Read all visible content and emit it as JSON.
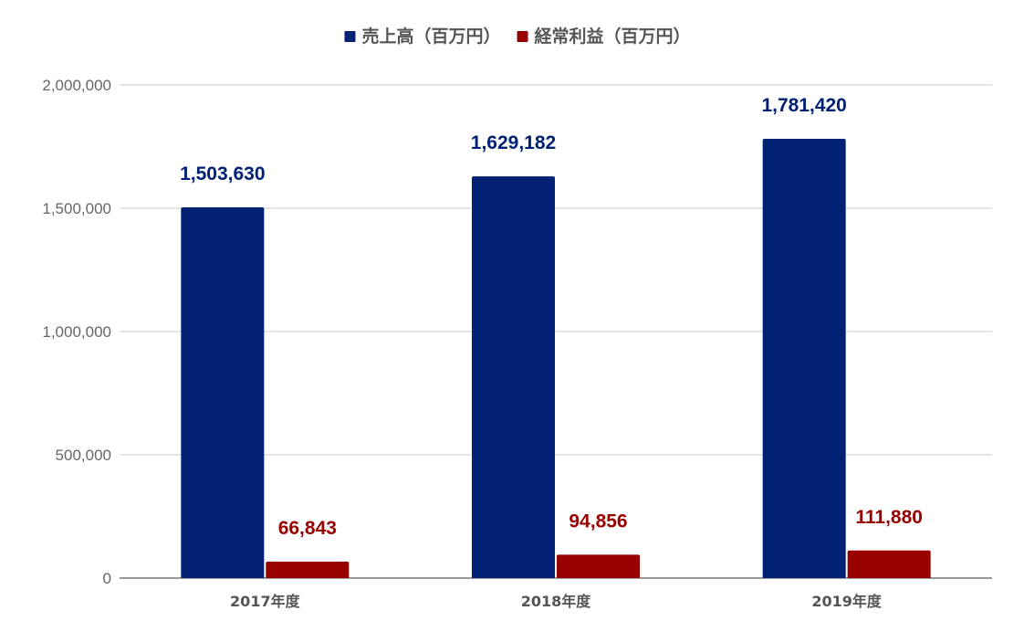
{
  "colors": {
    "background": "#ffffff",
    "gridline": "#cccccc",
    "baseline": "#333333",
    "sales": "#002174",
    "profit": "#990000"
  },
  "chart_data": {
    "type": "bar",
    "title": "",
    "xlabel": "",
    "ylabel": "",
    "categories": [
      "2017年度",
      "2018年度",
      "2019年度"
    ],
    "series": [
      {
        "name": "売上高（百万円）",
        "values": [
          1503630,
          1629182,
          1781420
        ],
        "labels": [
          "1,503,630",
          "1,629,182",
          "1,781,420"
        ],
        "color": "#002174"
      },
      {
        "name": "経常利益（百万円）",
        "values": [
          66843,
          94856,
          111880
        ],
        "labels": [
          "66,843",
          "94,856",
          "111,880"
        ],
        "color": "#990000"
      }
    ],
    "ylim": [
      0,
      2000000
    ],
    "yticks": [
      0,
      500000,
      1000000,
      1500000,
      2000000
    ],
    "ytick_labels": [
      "0",
      "500,000",
      "1,000,000",
      "1,500,000",
      "2,000,000"
    ],
    "grid": true,
    "legend": "top-center"
  }
}
